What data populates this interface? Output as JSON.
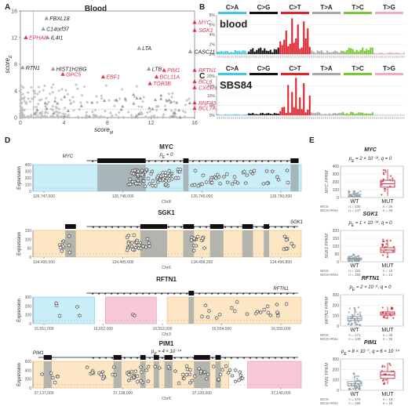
{
  "panel_letters": {
    "a": "A",
    "b": "B",
    "c": "C",
    "d": "D",
    "e": "E"
  },
  "colors": {
    "red": "#e0364f",
    "gray": "#9b9b9b",
    "ca": "#3fc8e6",
    "cg": "#111111",
    "ct": "#e4202b",
    "ta": "#a8a8a8",
    "tc": "#79c734",
    "tg": "#eeaccd",
    "cyan_box": "#c9eef8",
    "orange_box": "#fde6c4",
    "pink_box": "#f7c8d9",
    "wt": "#8a9ba8",
    "mut": "#cc2a3e"
  },
  "panel_a": {
    "title": "Blood",
    "xlabel": "score",
    "xlabel_sub": "M",
    "ylabel": "score",
    "ylabel_sub": "E",
    "x_ticks": [
      "0",
      "4",
      "8",
      "12",
      "16"
    ],
    "y_ticks": [
      "0",
      "4",
      "8",
      "12",
      "16"
    ],
    "gene_labels": [
      {
        "text": "FBXL18",
        "x": 2.4,
        "y": 14.9,
        "red": false
      },
      {
        "text": "C14orf37",
        "x": 2.1,
        "y": 13.3,
        "red": false
      },
      {
        "text": "EPHA8",
        "x": 0.5,
        "y": 12.0,
        "red": true
      },
      {
        "text": "IL4I1",
        "x": 2.5,
        "y": 12.0,
        "red": false
      },
      {
        "text": "LTA",
        "x": 10.9,
        "y": 10.4,
        "red": false
      },
      {
        "text": "MYC",
        "x": 16.6,
        "y": 14.3,
        "red": true
      },
      {
        "text": "SGK1",
        "x": 16.6,
        "y": 13.1,
        "red": true
      },
      {
        "text": "CASC11",
        "x": 15.6,
        "y": 9.9,
        "red": false
      },
      {
        "text": "RTN1",
        "x": 0.2,
        "y": 7.5,
        "red": false
      },
      {
        "text": "HIST1H2BG",
        "x": 3.0,
        "y": 7.3,
        "red": false
      },
      {
        "text": "GPC5",
        "x": 3.9,
        "y": 6.5,
        "red": true
      },
      {
        "text": "LTB",
        "x": 11.8,
        "y": 7.3,
        "red": false
      },
      {
        "text": "PIM1",
        "x": 13.2,
        "y": 7.1,
        "red": true
      },
      {
        "text": "RFTN1",
        "x": 16.6,
        "y": 7.1,
        "red": true
      },
      {
        "text": "EBF1",
        "x": 7.6,
        "y": 6.1,
        "red": true
      },
      {
        "text": "BCL11A",
        "x": 12.5,
        "y": 6.1,
        "red": true
      },
      {
        "text": "TOP3B",
        "x": 11.9,
        "y": 5.1,
        "red": true
      },
      {
        "text": "BCL6",
        "x": 16.1,
        "y": 5.4,
        "red": true
      },
      {
        "text": "CXCR4",
        "x": 16.1,
        "y": 4.5,
        "red": true
      },
      {
        "text": "RNF43",
        "x": 16.1,
        "y": 2.2,
        "red": true
      },
      {
        "text": "BCL7A",
        "x": 16.1,
        "y": 1.4,
        "red": true
      }
    ]
  },
  "panel_b": {
    "label": "blood",
    "y_ticks": [
      "0%",
      "2%",
      "4%",
      "6%",
      "8%"
    ],
    "groups": [
      "C>A",
      "C>G",
      "C>T",
      "T>A",
      "T>C",
      "T>G"
    ]
  },
  "panel_c": {
    "label": "SBS84",
    "y_ticks": [
      "0%",
      "5%",
      "10%",
      "15%",
      "20%"
    ],
    "groups": [
      "C>A",
      "C>G",
      "C>T",
      "T>A",
      "T>C",
      "T>G"
    ]
  },
  "panel_d": {
    "ylabel": "Expression",
    "tracks": [
      {
        "gene": "MYC",
        "pval": "p",
        "pval_sub": "E",
        "pval_rest": " = 0",
        "chrom": "Chr8",
        "y_ticks": [
          "0",
          "100",
          "200",
          "300",
          "400"
        ],
        "x_ticks": [
          "126,747,000",
          "126,748,000",
          "126,749,000",
          "126,750,000"
        ]
      },
      {
        "gene": "SGK1",
        "pval": "",
        "pval_sub": "",
        "pval_rest": "",
        "chrom": "Chr6",
        "y_ticks": [
          "0",
          "50",
          "100",
          "150"
        ],
        "x_ticks": [
          "134,495,000",
          "134,495,600",
          "134,496,200",
          "134,496,800"
        ]
      },
      {
        "gene": "RFTN1",
        "pval": "",
        "pval_sub": "",
        "pval_rest": "",
        "chrom": "Chr3",
        "y_ticks": [
          "0",
          "100",
          "200",
          "300"
        ],
        "x_ticks": [
          "16,551,000",
          "16,552,000",
          "16,553,000",
          "16,554,000",
          "16,555,000"
        ]
      },
      {
        "gene": "PIM1",
        "pval": "p",
        "pval_sub": "E",
        "pval_rest": " = 4 × 10⁻¹⁴",
        "chrom": "Chr6",
        "y_ticks": [
          "0",
          "200",
          "400",
          "600"
        ],
        "x_ticks": [
          "37,137,000",
          "37,138,000",
          "37,139,000",
          "37,140,000"
        ]
      }
    ]
  },
  "panel_e": {
    "plots": [
      {
        "gene": "MYC",
        "stat": "p",
        "stat_sub": "E",
        "stat_rest": " = 2 × 10⁻³¹, q = 0",
        "ylabel": "MYC FPKM",
        "y_ticks": [
          "0",
          "100",
          "200",
          "300",
          "400"
        ],
        "wt_label": "WT",
        "mut_label": "MUT",
        "row1": "WGS",
        "row2": "WGS+RNA",
        "wt_n1": "n = 230",
        "wt_n2": "n = 147",
        "mut_n1": "n = 26",
        "mut_n2": "n = 26",
        "wt": [
          0.03,
          0.15,
          0.05,
          0.22
        ],
        "mut": [
          0.05,
          0.33,
          0.55,
          0.9
        ]
      },
      {
        "gene": "SGK1",
        "stat": "p",
        "stat_sub": "E",
        "stat_rest": " = 1 × 10⁻¹⁴, q = 0",
        "ylabel": "SGK1 FPKM",
        "y_ticks": [
          "0",
          "50",
          "100",
          "150",
          "200"
        ],
        "wt_label": "WT",
        "mut_label": "MUT",
        "row1": "WGS",
        "row2": "WGS+RNA",
        "wt_n1": "n = 182",
        "wt_n2": "n = 159",
        "mut_n1": "n = 15",
        "mut_n2": "n = 14",
        "wt": [
          0.02,
          0.07,
          0.12,
          0.25
        ],
        "mut": [
          0.15,
          0.3,
          0.45,
          0.72
        ]
      },
      {
        "gene": "RFTN1",
        "stat": "p",
        "stat_sub": "E",
        "stat_rest": " = 2 × 10⁻⁶, q = 0",
        "ylabel": "RFTN1 FPKM",
        "y_ticks": [
          "0",
          "100",
          "200",
          "300"
        ],
        "wt_label": "WT",
        "mut_label": "MUT",
        "row1": "WGS",
        "row2": "WGS+RNA",
        "wt_n1": "n = 171",
        "wt_n2": "n = 148",
        "mut_n1": "n = 25",
        "mut_n2": "n = 25",
        "wt": [
          0.03,
          0.18,
          0.3,
          0.6
        ],
        "mut": [
          0.22,
          0.35,
          0.45,
          0.62
        ]
      },
      {
        "gene": "PIM1",
        "stat": "p",
        "stat_sub": "E",
        "stat_rest": " = 8 × 10⁻⁷, q = 6 × 10⁻¹⁴",
        "ylabel": "PIM1 FPKM",
        "y_ticks": [
          "0",
          "100",
          "200",
          "300"
        ],
        "wt_label": "WT",
        "mut_label": "MUT",
        "row1": "WGS",
        "row2": "WGS+RNA",
        "wt_n1": "n = 178",
        "wt_n2": "n = 155",
        "mut_n1": "n = 18",
        "mut_n2": "n = 18",
        "wt": [
          0.03,
          0.15,
          0.28,
          0.55
        ],
        "mut": [
          0.2,
          0.38,
          0.6,
          0.88
        ]
      }
    ]
  }
}
